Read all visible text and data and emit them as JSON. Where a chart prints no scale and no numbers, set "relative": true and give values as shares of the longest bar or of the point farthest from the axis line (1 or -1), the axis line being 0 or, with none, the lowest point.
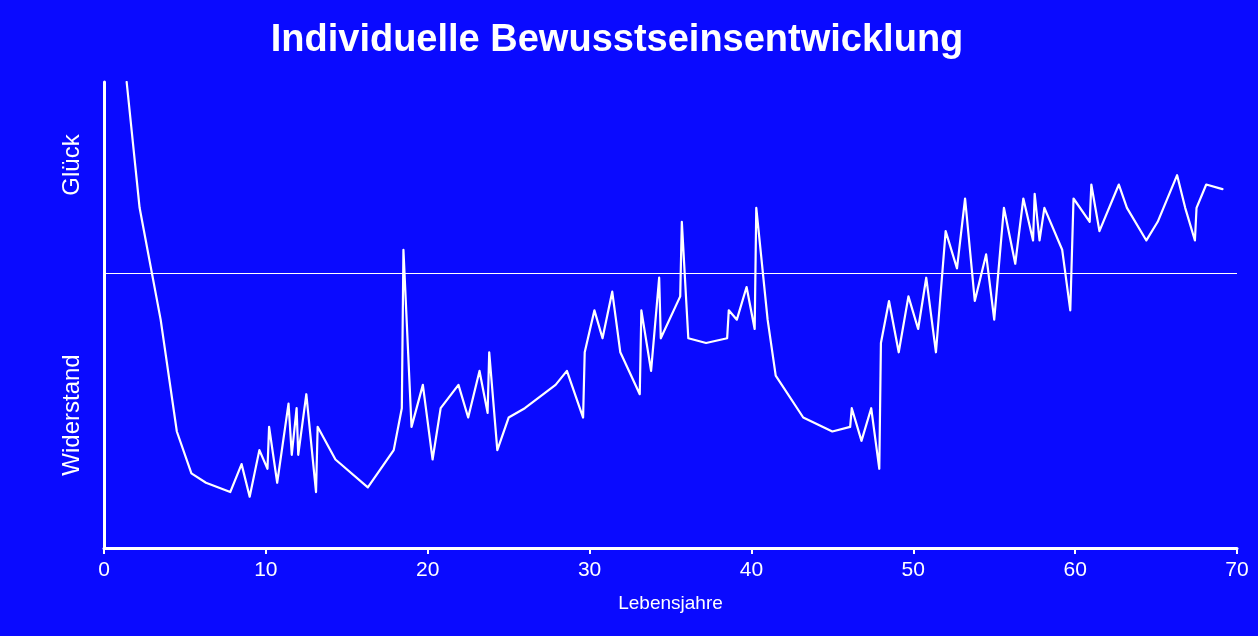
{
  "chart_data": {
    "type": "line",
    "title": "Individuelle Bewusstseinsentwicklung",
    "xlabel": "Lebensjahre",
    "annotations": [
      "Glück",
      "Widerstand"
    ],
    "relative": true,
    "xlim": [
      0,
      70
    ],
    "xticks": [
      0,
      10,
      20,
      30,
      40,
      50,
      60,
      70
    ],
    "grid": false,
    "marker": "none",
    "line_style": "solid",
    "ref_lines": [
      {
        "axis": "y",
        "value": 0.59,
        "color": "#ffffff"
      }
    ],
    "series": [
      {
        "color": "#ffffff",
        "x": [
          1.4,
          2.2,
          3.5,
          4.5,
          5.4,
          6.3,
          7.8,
          8.5,
          9.0,
          9.6,
          10.1,
          10.2,
          10.7,
          11.4,
          11.6,
          11.9,
          12.0,
          12.5,
          13.1,
          13.2,
          14.3,
          16.3,
          17.9,
          18.4,
          18.5,
          19.0,
          19.7,
          20.3,
          20.8,
          21.9,
          22.5,
          23.2,
          23.7,
          23.8,
          24.3,
          25.0,
          26.0,
          27.9,
          28.6,
          29.6,
          29.7,
          30.3,
          30.8,
          31.4,
          31.9,
          33.1,
          33.2,
          33.8,
          34.3,
          34.4,
          35.6,
          35.7,
          36.1,
          37.2,
          38.5,
          38.6,
          39.1,
          39.7,
          40.2,
          40.3,
          41.0,
          41.5,
          43.2,
          45.0,
          46.1,
          46.2,
          46.8,
          47.4,
          47.9,
          48.0,
          48.5,
          49.1,
          49.7,
          50.3,
          50.8,
          51.4,
          52.0,
          52.7,
          53.2,
          53.8,
          54.5,
          55.0,
          55.6,
          56.3,
          56.8,
          57.4,
          57.5,
          57.8,
          58.1,
          59.2,
          59.7,
          59.9,
          60.9,
          61.0,
          61.5,
          62.7,
          63.2,
          64.4,
          65.1,
          66.3,
          66.8,
          67.4,
          67.5,
          68.1,
          69.1
        ],
        "values": [
          1.0,
          0.73,
          0.49,
          0.25,
          0.16,
          0.14,
          0.12,
          0.18,
          0.11,
          0.21,
          0.17,
          0.26,
          0.14,
          0.31,
          0.2,
          0.3,
          0.2,
          0.33,
          0.12,
          0.26,
          0.19,
          0.13,
          0.21,
          0.3,
          0.64,
          0.26,
          0.35,
          0.19,
          0.3,
          0.35,
          0.28,
          0.38,
          0.29,
          0.42,
          0.21,
          0.28,
          0.3,
          0.35,
          0.38,
          0.28,
          0.42,
          0.51,
          0.45,
          0.55,
          0.42,
          0.33,
          0.51,
          0.38,
          0.58,
          0.45,
          0.54,
          0.7,
          0.45,
          0.44,
          0.45,
          0.51,
          0.49,
          0.56,
          0.47,
          0.73,
          0.49,
          0.37,
          0.28,
          0.25,
          0.26,
          0.3,
          0.23,
          0.3,
          0.17,
          0.44,
          0.53,
          0.42,
          0.54,
          0.47,
          0.58,
          0.42,
          0.68,
          0.6,
          0.75,
          0.53,
          0.63,
          0.49,
          0.73,
          0.61,
          0.75,
          0.66,
          0.76,
          0.66,
          0.73,
          0.64,
          0.51,
          0.75,
          0.7,
          0.78,
          0.68,
          0.78,
          0.73,
          0.66,
          0.7,
          0.8,
          0.73,
          0.66,
          0.73,
          0.78,
          0.77
        ]
      }
    ]
  }
}
